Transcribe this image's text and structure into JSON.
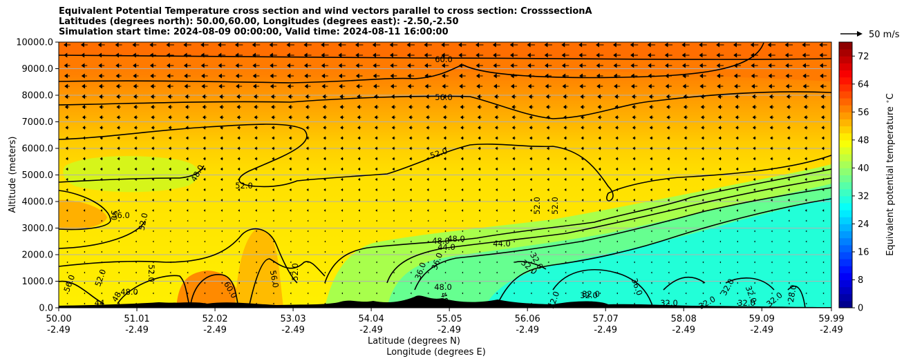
{
  "chart_data": {
    "type": "heatmap",
    "title_lines": [
      "Equivalent Potential Temperature cross section and wind vectors parallel to cross section: CrosssectionA",
      "Latitudes (degrees north): 50.00,60.00, Longitudes (degrees east): -2.50,-2.50",
      "Simulation start time: 2024-08-09 00:00:00, Valid time: 2024-08-11 16:00:00"
    ],
    "ylabel": "Altitude (meters)",
    "xlabel_lines": [
      "Latitude (degrees N)",
      "Longitude (degrees E)"
    ],
    "ylim": [
      0,
      10000
    ],
    "xlim": [
      50.0,
      59.99
    ],
    "y_ticks": [
      "0.0",
      "1000.0",
      "2000.0",
      "3000.0",
      "4000.0",
      "5000.0",
      "6000.0",
      "7000.0",
      "8000.0",
      "9000.0",
      "10000.0"
    ],
    "x_ticks": [
      {
        "lat": "50.00",
        "lon": "-2.49"
      },
      {
        "lat": "51.01",
        "lon": "-2.49"
      },
      {
        "lat": "52.02",
        "lon": "-2.49"
      },
      {
        "lat": "53.03",
        "lon": "-2.49"
      },
      {
        "lat": "54.04",
        "lon": "-2.49"
      },
      {
        "lat": "55.05",
        "lon": "-2.49"
      },
      {
        "lat": "56.06",
        "lon": "-2.49"
      },
      {
        "lat": "57.07",
        "lon": "-2.49"
      },
      {
        "lat": "58.08",
        "lon": "-2.49"
      },
      {
        "lat": "59.09",
        "lon": "-2.49"
      },
      {
        "lat": "59.99",
        "lon": "-2.49"
      }
    ],
    "grid": "horizontal",
    "colorbar": {
      "label": "Equivalent potential temperature $^\\circ$C",
      "min": 0,
      "max": 76,
      "step": 2,
      "tick_labels": [
        "0",
        "8",
        "16",
        "24",
        "32",
        "40",
        "48",
        "56",
        "64",
        "72"
      ],
      "colormap": "jet"
    },
    "wind_key": {
      "label": "50 m/s",
      "speed": 50
    },
    "contour_labels": [
      "60.0",
      "56.0",
      "52.0",
      "52.0",
      "48.0",
      "56.0",
      "50",
      "52.0",
      "48.0",
      "44.0",
      "48.0",
      "44.0",
      "52.0",
      "52.0",
      "52.0",
      "56.0",
      "52.0",
      "44",
      "48",
      "48.0",
      "60.0",
      "56.0",
      "52.0",
      "36.0",
      "36.0",
      "48.0",
      "48",
      "32.0",
      "32.0",
      "32.0",
      "32.0",
      "32.0",
      "36.0",
      "32.0",
      "32.0",
      "32.0",
      "32.0",
      "32.0",
      "28.0",
      "32.0"
    ],
    "colors": {
      "background_fill": "#ff6e00",
      "terrain": "#000000",
      "contour": "#000000",
      "grid": "#b0b0b0"
    }
  }
}
